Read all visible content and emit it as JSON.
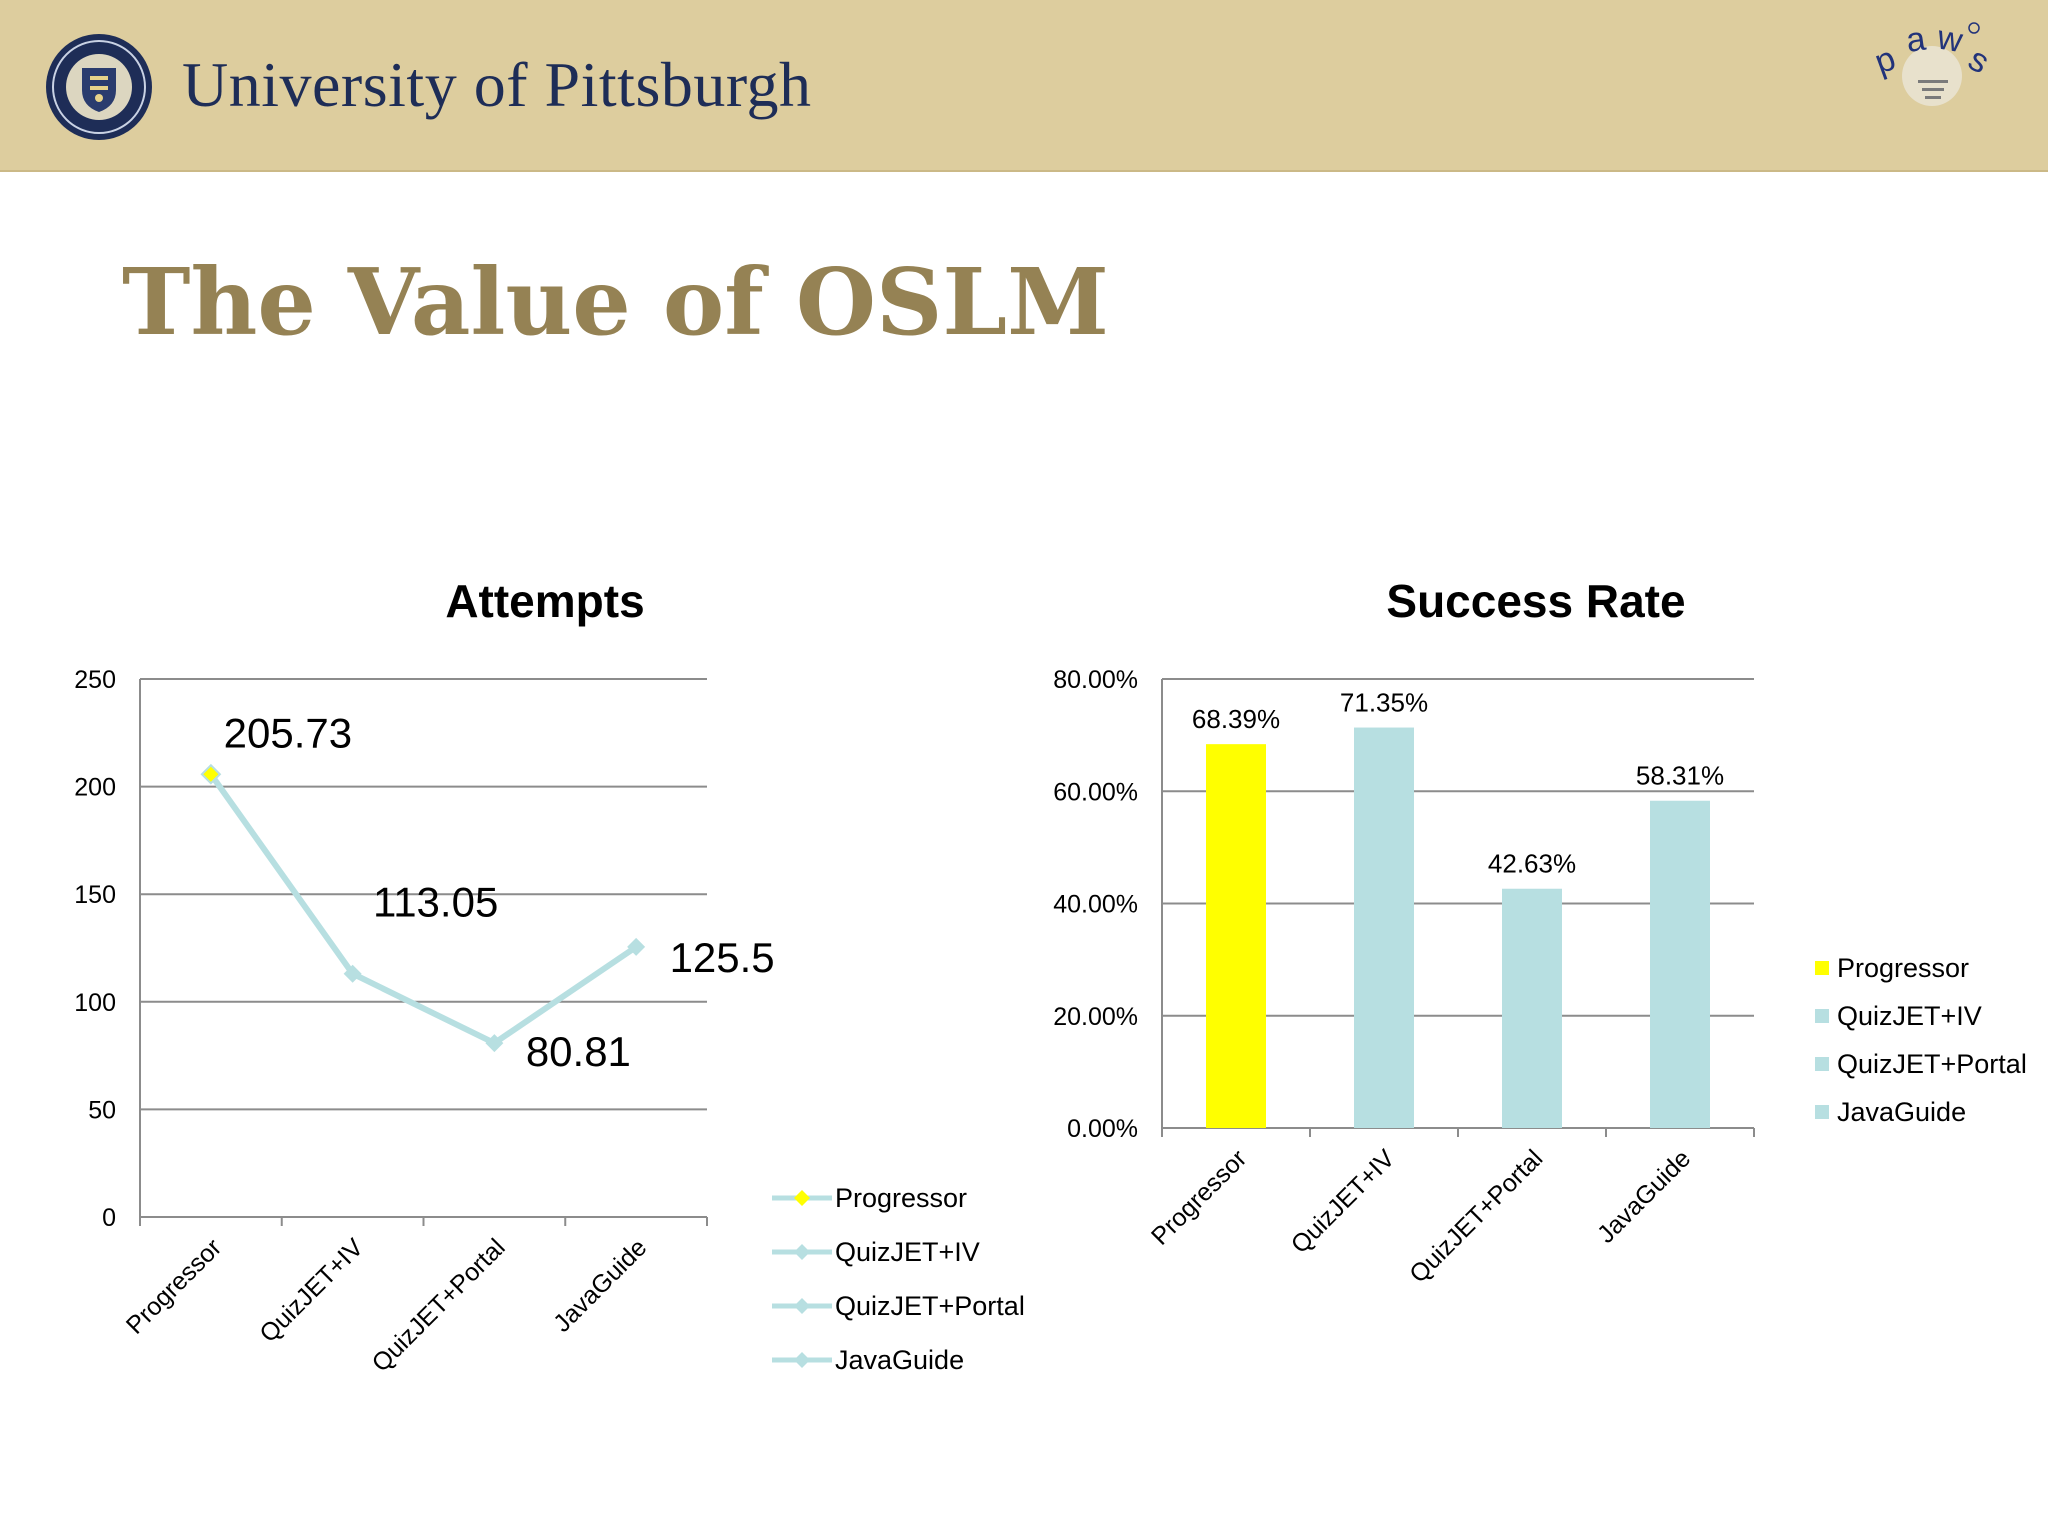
{
  "header": {
    "university_name": "University of Pittsburgh",
    "logo_icon": "university-seal-icon",
    "paws_logo_text": "paws",
    "banner_color": "#ddcd9e"
  },
  "slide": {
    "title": "The Value of OSLM"
  },
  "chart_data": [
    {
      "type": "line",
      "title": "Attempts",
      "categories": [
        "Progressor",
        "QuizJET+IV",
        "QuizJET+Portal",
        "JavaGuide"
      ],
      "series": [
        {
          "name": "Attempts",
          "values": [
            205.73,
            113.05,
            80.81,
            125.5
          ]
        }
      ],
      "data_labels": [
        "205.73",
        "113.05",
        "80.81",
        "125.5"
      ],
      "ylim": [
        0,
        250
      ],
      "yticks": [
        0,
        50,
        100,
        150,
        200,
        250
      ],
      "ytick_labels": [
        "0",
        "50",
        "100",
        "150",
        "200",
        "250"
      ],
      "grid": true,
      "legend": {
        "placement": "right-bottom",
        "entries": [
          "Progressor",
          "QuizJET+IV",
          "QuizJET+Portal",
          "JavaGuide"
        ],
        "colors": [
          "#ffff00",
          "#b7dfe1",
          "#b7dfe1",
          "#b7dfe1"
        ]
      },
      "line_color": "#b7dfe1",
      "highlight_color": "#ffff00"
    },
    {
      "type": "bar",
      "title": "Success Rate",
      "categories": [
        "Progressor",
        "QuizJET+IV",
        "QuizJET+Portal",
        "JavaGuide"
      ],
      "values": [
        68.39,
        71.35,
        42.63,
        58.31
      ],
      "data_labels": [
        "68.39%",
        "71.35%",
        "42.63%",
        "58.31%"
      ],
      "ylim": [
        0,
        80
      ],
      "yticks": [
        0,
        20,
        40,
        60,
        80
      ],
      "ytick_labels": [
        "0.00%",
        "20.00%",
        "40.00%",
        "60.00%",
        "80.00%"
      ],
      "grid": true,
      "colors": [
        "#ffff00",
        "#b7dfe1",
        "#b7dfe1",
        "#b7dfe1"
      ],
      "legend": {
        "placement": "right",
        "entries": [
          "Progressor",
          "QuizJET+IV",
          "QuizJET+Portal",
          "JavaGuide"
        ],
        "colors": [
          "#ffff00",
          "#b7dfe1",
          "#b7dfe1",
          "#b7dfe1"
        ]
      }
    }
  ]
}
